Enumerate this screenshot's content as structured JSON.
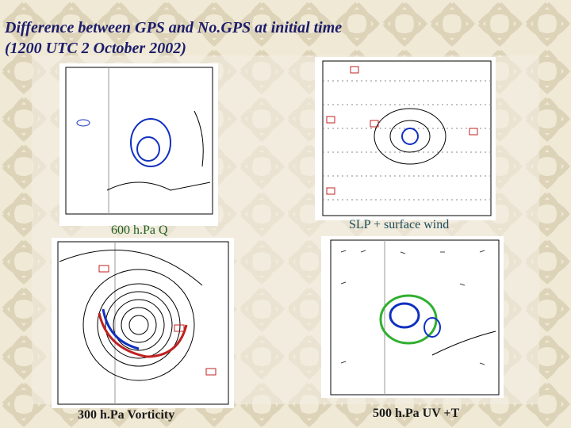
{
  "title": {
    "line1": "Difference between GPS and No.GPS at initial time",
    "line2": "(1200 UTC 2 October 2002)"
  },
  "panels": [
    {
      "caption": "600 h.Pa Q"
    },
    {
      "caption": "SLP + surface wind"
    },
    {
      "caption": "300 h.Pa Vorticity"
    },
    {
      "caption": "500 h.Pa UV +T"
    }
  ]
}
